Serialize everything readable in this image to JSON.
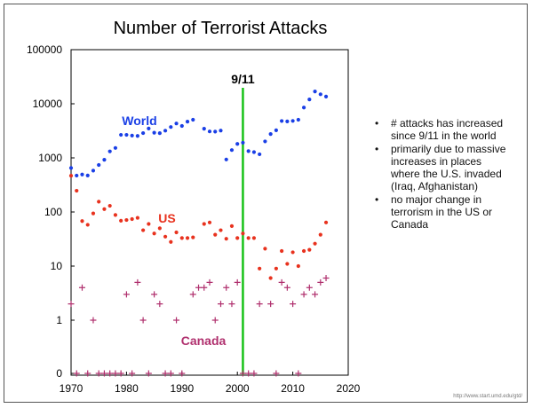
{
  "chart_data": {
    "type": "scatter",
    "title": "Number of Terrorist Attacks",
    "y_scale": "log",
    "xlim": [
      1970,
      2020
    ],
    "x_ticks": [
      "1970",
      "1980",
      "1990",
      "2000",
      "2010",
      "2020"
    ],
    "y_ticks": [
      "0",
      "1",
      "10",
      "100",
      "1000",
      "10000",
      "100000"
    ],
    "event": {
      "label": "9/11",
      "x": 2001,
      "color": "#19c219"
    },
    "series": [
      {
        "name": "World",
        "color": "#1a3fe6",
        "marker": "dot",
        "points": [
          [
            1970,
            651
          ],
          [
            1971,
            471
          ],
          [
            1972,
            493
          ],
          [
            1973,
            473
          ],
          [
            1974,
            581
          ],
          [
            1975,
            740
          ],
          [
            1976,
            923
          ],
          [
            1977,
            1319
          ],
          [
            1978,
            1526
          ],
          [
            1979,
            2662
          ],
          [
            1980,
            2662
          ],
          [
            1981,
            2586
          ],
          [
            1982,
            2544
          ],
          [
            1983,
            2870
          ],
          [
            1984,
            3495
          ],
          [
            1985,
            2915
          ],
          [
            1986,
            2860
          ],
          [
            1987,
            3183
          ],
          [
            1988,
            3721
          ],
          [
            1989,
            4324
          ],
          [
            1990,
            3887
          ],
          [
            1991,
            4683
          ],
          [
            1992,
            5071
          ],
          [
            1994,
            3456
          ],
          [
            1995,
            3081
          ],
          [
            1996,
            3058
          ],
          [
            1997,
            3197
          ],
          [
            1998,
            934
          ],
          [
            1999,
            1395
          ],
          [
            2000,
            1814
          ],
          [
            2001,
            1906
          ],
          [
            2002,
            1333
          ],
          [
            2003,
            1278
          ],
          [
            2004,
            1166
          ],
          [
            2005,
            2017
          ],
          [
            2006,
            2758
          ],
          [
            2007,
            3242
          ],
          [
            2008,
            4805
          ],
          [
            2009,
            4721
          ],
          [
            2010,
            4826
          ],
          [
            2011,
            5076
          ],
          [
            2012,
            8522
          ],
          [
            2013,
            12036
          ],
          [
            2014,
            16903
          ],
          [
            2015,
            14965
          ],
          [
            2016,
            13587
          ]
        ]
      },
      {
        "name": "US",
        "color": "#e8321e",
        "marker": "dot",
        "points": [
          [
            1970,
            468
          ],
          [
            1971,
            247
          ],
          [
            1972,
            68
          ],
          [
            1973,
            58
          ],
          [
            1974,
            94
          ],
          [
            1975,
            155
          ],
          [
            1976,
            113
          ],
          [
            1977,
            130
          ],
          [
            1978,
            88
          ],
          [
            1979,
            69
          ],
          [
            1980,
            71
          ],
          [
            1981,
            74
          ],
          [
            1982,
            78
          ],
          [
            1983,
            46
          ],
          [
            1984,
            60
          ],
          [
            1985,
            40
          ],
          [
            1986,
            50
          ],
          [
            1987,
            35
          ],
          [
            1988,
            28
          ],
          [
            1989,
            42
          ],
          [
            1990,
            33
          ],
          [
            1991,
            33
          ],
          [
            1992,
            34
          ],
          [
            1994,
            60
          ],
          [
            1995,
            64
          ],
          [
            1996,
            38
          ],
          [
            1997,
            46
          ],
          [
            1998,
            32
          ],
          [
            1999,
            55
          ],
          [
            2000,
            33
          ],
          [
            2001,
            40
          ],
          [
            2002,
            33
          ],
          [
            2003,
            33
          ],
          [
            2004,
            9
          ],
          [
            2005,
            21
          ],
          [
            2006,
            6
          ],
          [
            2007,
            9
          ],
          [
            2008,
            19
          ],
          [
            2009,
            11
          ],
          [
            2010,
            18
          ],
          [
            2011,
            10
          ],
          [
            2012,
            19
          ],
          [
            2013,
            20
          ],
          [
            2014,
            26
          ],
          [
            2015,
            38
          ],
          [
            2016,
            64
          ]
        ]
      },
      {
        "name": "Canada",
        "color": "#b0306e",
        "marker": "plus",
        "points": [
          [
            1970,
            2
          ],
          [
            1971,
            0
          ],
          [
            1972,
            4
          ],
          [
            1973,
            0
          ],
          [
            1974,
            1
          ],
          [
            1975,
            0
          ],
          [
            1976,
            0
          ],
          [
            1977,
            0
          ],
          [
            1978,
            0
          ],
          [
            1979,
            0
          ],
          [
            1980,
            3
          ],
          [
            1981,
            0
          ],
          [
            1982,
            5
          ],
          [
            1983,
            1
          ],
          [
            1984,
            0
          ],
          [
            1985,
            3
          ],
          [
            1986,
            2
          ],
          [
            1987,
            0
          ],
          [
            1988,
            0
          ],
          [
            1989,
            1
          ],
          [
            1990,
            0
          ],
          [
            1992,
            3
          ],
          [
            1993,
            4
          ],
          [
            1994,
            4
          ],
          [
            1995,
            5
          ],
          [
            1996,
            1
          ],
          [
            1997,
            2
          ],
          [
            1998,
            4
          ],
          [
            1999,
            2
          ],
          [
            2000,
            5
          ],
          [
            2001,
            0
          ],
          [
            2002,
            0
          ],
          [
            2003,
            0
          ],
          [
            2004,
            2
          ],
          [
            2006,
            2
          ],
          [
            2007,
            0
          ],
          [
            2008,
            5
          ],
          [
            2009,
            4
          ],
          [
            2010,
            2
          ],
          [
            2011,
            0
          ],
          [
            2012,
            3
          ],
          [
            2013,
            4
          ],
          [
            2014,
            3
          ],
          [
            2015,
            5
          ],
          [
            2016,
            6
          ]
        ]
      }
    ]
  },
  "notes": [
    "# attacks has increased since 9/11 in the world",
    "primarily due to massive increases in places where the U.S. invaded (Iraq, Afghanistan)",
    "no major change in terrorism in the US or Canada"
  ],
  "bullet_glyph": "•",
  "source": "http://www.start.umd.edu/gtd/"
}
